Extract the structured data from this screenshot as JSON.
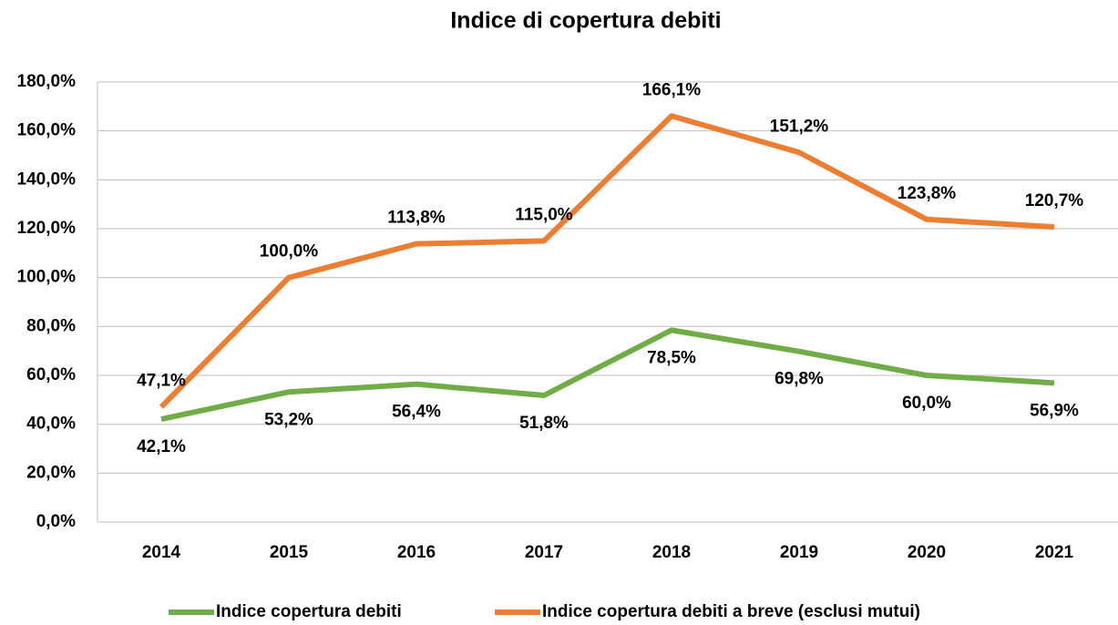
{
  "chart_data": {
    "type": "line",
    "title": "Indice di copertura debiti",
    "categories": [
      "2014",
      "2015",
      "2016",
      "2017",
      "2018",
      "2019",
      "2020",
      "2021"
    ],
    "series": [
      {
        "name": "Indice copertura debiti",
        "color": "#70ad47",
        "values": [
          42.1,
          53.2,
          56.4,
          51.8,
          78.5,
          69.8,
          60.0,
          56.9
        ],
        "value_labels": [
          "42,1%",
          "53,2%",
          "56,4%",
          "51,8%",
          "78,5%",
          "69,8%",
          "60,0%",
          "56,9%"
        ]
      },
      {
        "name": "Indice copertura debiti a breve (esclusi mutui)",
        "color": "#ed7d31",
        "values": [
          47.1,
          100.0,
          113.8,
          115.0,
          166.1,
          151.2,
          123.8,
          120.7
        ],
        "value_labels": [
          "47,1%",
          "100,0%",
          "113,8%",
          "115,0%",
          "166,1%",
          "151,2%",
          "123,8%",
          "120,7%"
        ]
      }
    ],
    "ylim": [
      0,
      180
    ],
    "yticks": [
      {
        "value": 0,
        "label": "0,0%"
      },
      {
        "value": 20,
        "label": "20,0%"
      },
      {
        "value": 40,
        "label": "40,0%"
      },
      {
        "value": 60,
        "label": "60,0%"
      },
      {
        "value": 80,
        "label": "80,0%"
      },
      {
        "value": 100,
        "label": "100,0%"
      },
      {
        "value": 120,
        "label": "120,0%"
      },
      {
        "value": 140,
        "label": "140,0%"
      },
      {
        "value": 160,
        "label": "160,0%"
      },
      {
        "value": 180,
        "label": "180,0%"
      }
    ],
    "grid": true,
    "legend": "bottom"
  }
}
